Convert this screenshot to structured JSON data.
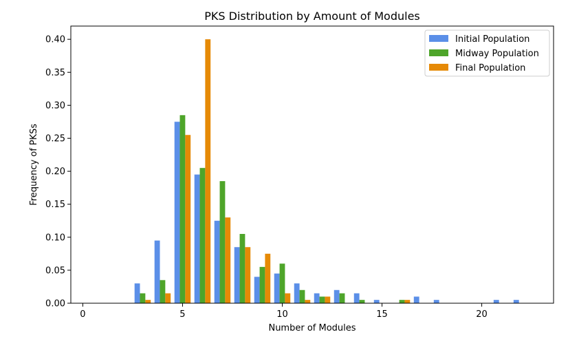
{
  "chart_data": {
    "type": "bar",
    "title": "PKS Distribution by Amount of Modules",
    "xlabel": "Number of Modules",
    "ylabel": "Frequency of PKSs",
    "xlim": [
      -0.6,
      23.6
    ],
    "ylim": [
      0,
      0.42
    ],
    "xticks": [
      0,
      5,
      10,
      15,
      20
    ],
    "yticks": [
      0.0,
      0.05,
      0.1,
      0.15,
      0.2,
      0.25,
      0.3,
      0.35,
      0.4
    ],
    "legend_position": "top-right",
    "series": [
      {
        "name": "Initial Population",
        "color": "#5b8fe8",
        "x": [
          3,
          4,
          5,
          6,
          7,
          8,
          9,
          10,
          11,
          12,
          13,
          14,
          15,
          17,
          18,
          21,
          22
        ],
        "values": [
          0.03,
          0.095,
          0.275,
          0.195,
          0.125,
          0.085,
          0.04,
          0.045,
          0.03,
          0.015,
          0.02,
          0.015,
          0.005,
          0.01,
          0.005,
          0.005,
          0.005
        ]
      },
      {
        "name": "Midway Population",
        "color": "#4ea52a",
        "x": [
          3,
          4,
          5,
          6,
          7,
          8,
          9,
          10,
          11,
          12,
          13,
          14,
          16
        ],
        "values": [
          0.015,
          0.035,
          0.285,
          0.205,
          0.185,
          0.105,
          0.055,
          0.06,
          0.02,
          0.01,
          0.015,
          0.005,
          0.005
        ]
      },
      {
        "name": "Final Population",
        "color": "#e68a06",
        "x": [
          3,
          4,
          5,
          6,
          7,
          8,
          9,
          10,
          11,
          12,
          16
        ],
        "values": [
          0.005,
          0.015,
          0.255,
          0.4,
          0.13,
          0.085,
          0.075,
          0.015,
          0.005,
          0.01,
          0.005
        ]
      }
    ]
  }
}
